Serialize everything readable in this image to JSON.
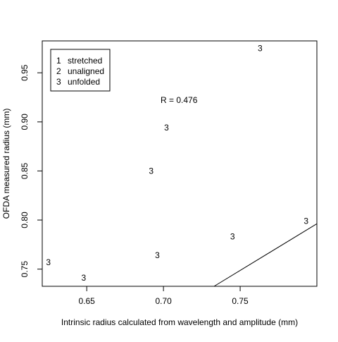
{
  "chart_data": {
    "type": "scatter",
    "title": "",
    "xlabel": "Intrinsic radius calculated from wavelength and amplitude (mm)",
    "ylabel": "OFDA measured radius (mm)",
    "xlim": [
      0.621,
      0.8
    ],
    "ylim": [
      0.7325,
      0.9825
    ],
    "xticks": [
      0.65,
      0.7,
      0.75
    ],
    "xtick_labels": [
      "0.65",
      "0.70",
      "0.75"
    ],
    "yticks": [
      0.75,
      0.8,
      0.85,
      0.9,
      0.95
    ],
    "ytick_labels": [
      "0.75",
      "0.80",
      "0.85",
      "0.90",
      "0.95"
    ],
    "grid": false,
    "legend_position": "top-left",
    "legend": [
      {
        "marker": "1",
        "label": "stretched"
      },
      {
        "marker": "2",
        "label": "unaligned"
      },
      {
        "marker": "3",
        "label": "unfolded"
      }
    ],
    "annotation": "R = 0.476",
    "points": [
      {
        "x": 0.625,
        "y": 0.757,
        "marker": "3"
      },
      {
        "x": 0.648,
        "y": 0.741,
        "marker": "3"
      },
      {
        "x": 0.692,
        "y": 0.85,
        "marker": "3"
      },
      {
        "x": 0.696,
        "y": 0.764,
        "marker": "3"
      },
      {
        "x": 0.702,
        "y": 0.894,
        "marker": "3"
      },
      {
        "x": 0.745,
        "y": 0.783,
        "marker": "3"
      },
      {
        "x": 0.763,
        "y": 0.975,
        "marker": "3"
      },
      {
        "x": 0.793,
        "y": 0.799,
        "marker": "3"
      }
    ],
    "line": {
      "x": [
        0.733,
        0.8
      ],
      "y": [
        0.7325,
        0.7962
      ]
    }
  }
}
